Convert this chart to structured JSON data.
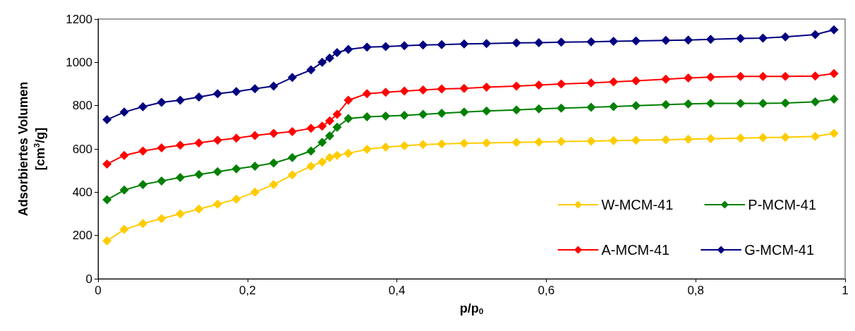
{
  "chart_data": {
    "type": "line",
    "xlabel": "p/p$_{0}$",
    "ylabel": "Adsorbiertes Volumen\n[cm$^{3}$/g]",
    "x": [
      0.012,
      0.035,
      0.06,
      0.085,
      0.11,
      0.135,
      0.16,
      0.185,
      0.21,
      0.235,
      0.26,
      0.285,
      0.3,
      0.31,
      0.32,
      0.335,
      0.36,
      0.385,
      0.41,
      0.435,
      0.46,
      0.49,
      0.52,
      0.56,
      0.59,
      0.62,
      0.66,
      0.69,
      0.72,
      0.76,
      0.79,
      0.82,
      0.86,
      0.89,
      0.92,
      0.96,
      0.985
    ],
    "series": [
      {
        "name": "W-MCM-41",
        "color": "#ffcc00",
        "values": [
          175,
          228,
          255,
          278,
          300,
          322,
          345,
          368,
          400,
          435,
          480,
          520,
          540,
          560,
          570,
          580,
          598,
          608,
          615,
          620,
          623,
          626,
          628,
          630,
          632,
          634,
          636,
          638,
          640,
          642,
          645,
          647,
          650,
          652,
          654,
          658,
          672
        ]
      },
      {
        "name": "P-MCM-41",
        "color": "#008000",
        "values": [
          365,
          410,
          435,
          452,
          468,
          482,
          495,
          508,
          520,
          535,
          560,
          590,
          630,
          660,
          700,
          740,
          748,
          752,
          755,
          760,
          765,
          770,
          775,
          780,
          785,
          788,
          792,
          796,
          800,
          805,
          808,
          810,
          810,
          810,
          812,
          818,
          830
        ]
      },
      {
        "name": "A-MCM-41",
        "color": "#ff0000",
        "values": [
          530,
          570,
          590,
          605,
          617,
          628,
          640,
          650,
          662,
          672,
          680,
          695,
          705,
          730,
          760,
          825,
          855,
          862,
          867,
          872,
          877,
          880,
          885,
          890,
          895,
          900,
          905,
          910,
          915,
          922,
          928,
          932,
          935,
          935,
          935,
          937,
          948
        ]
      },
      {
        "name": "G-MCM-41",
        "color": "#000080",
        "values": [
          735,
          770,
          795,
          815,
          825,
          840,
          855,
          865,
          878,
          890,
          930,
          965,
          1000,
          1020,
          1045,
          1060,
          1070,
          1073,
          1077,
          1080,
          1082,
          1085,
          1087,
          1090,
          1091,
          1093,
          1095,
          1097,
          1099,
          1101,
          1103,
          1106,
          1110,
          1112,
          1118,
          1128,
          1150
        ]
      }
    ],
    "xlim": [
      0,
      1
    ],
    "xticks": [
      0,
      {
        "value": 0.2,
        "label": "0,2"
      },
      {
        "value": 0.4,
        "label": "0,4"
      },
      {
        "value": 0.6,
        "label": "0,6"
      },
      {
        "value": 0.8,
        "label": "0,8"
      },
      1
    ],
    "ylim": [
      0,
      1200
    ],
    "yticks": [
      0,
      200,
      400,
      600,
      800,
      1000,
      1200
    ],
    "grid": false,
    "legend": "bottom right",
    "marker": "diamond",
    "line_style": "solid"
  }
}
